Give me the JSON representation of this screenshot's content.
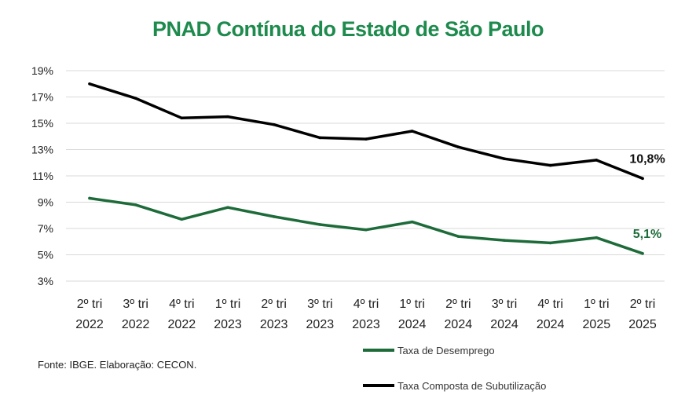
{
  "chart_data": {
    "type": "line",
    "title": "PNAD Contínua do Estado de São Paulo",
    "xlabel": "",
    "ylabel": "",
    "categories": [
      [
        "2º tri",
        "2022"
      ],
      [
        "3º tri",
        "2022"
      ],
      [
        "4º tri",
        "2022"
      ],
      [
        "1º tri",
        "2023"
      ],
      [
        "2º tri",
        "2023"
      ],
      [
        "3º tri",
        "2023"
      ],
      [
        "4º tri",
        "2023"
      ],
      [
        "1º tri",
        "2024"
      ],
      [
        "2º tri",
        "2024"
      ],
      [
        "3º tri",
        "2024"
      ],
      [
        "4º tri",
        "2024"
      ],
      [
        "1º tri",
        "2025"
      ],
      [
        "2º tri",
        "2025"
      ]
    ],
    "yticks": [
      "3%",
      "5%",
      "7%",
      "9%",
      "11%",
      "13%",
      "15%",
      "17%",
      "19%"
    ],
    "ylim": [
      3,
      19
    ],
    "grid": true,
    "legend_position": "bottom-right",
    "series": [
      {
        "name": "Taxa de Desemprego",
        "color": "#1e6b3a",
        "values": [
          9.3,
          8.8,
          7.7,
          8.6,
          7.9,
          7.3,
          6.9,
          7.5,
          6.4,
          6.1,
          5.9,
          6.3,
          5.1
        ],
        "end_label": "5,1%",
        "end_label_color": "#1e6b3a"
      },
      {
        "name": "Taxa Composta de Subutilização",
        "color": "#000000",
        "values": [
          18.0,
          16.9,
          15.4,
          15.5,
          14.9,
          13.9,
          13.8,
          14.4,
          13.2,
          12.3,
          11.8,
          12.2,
          10.8
        ],
        "end_label": "10,8%",
        "end_label_color": "#111111"
      }
    ]
  },
  "source_note": "Fonte: IBGE. Elaboração: CECON."
}
